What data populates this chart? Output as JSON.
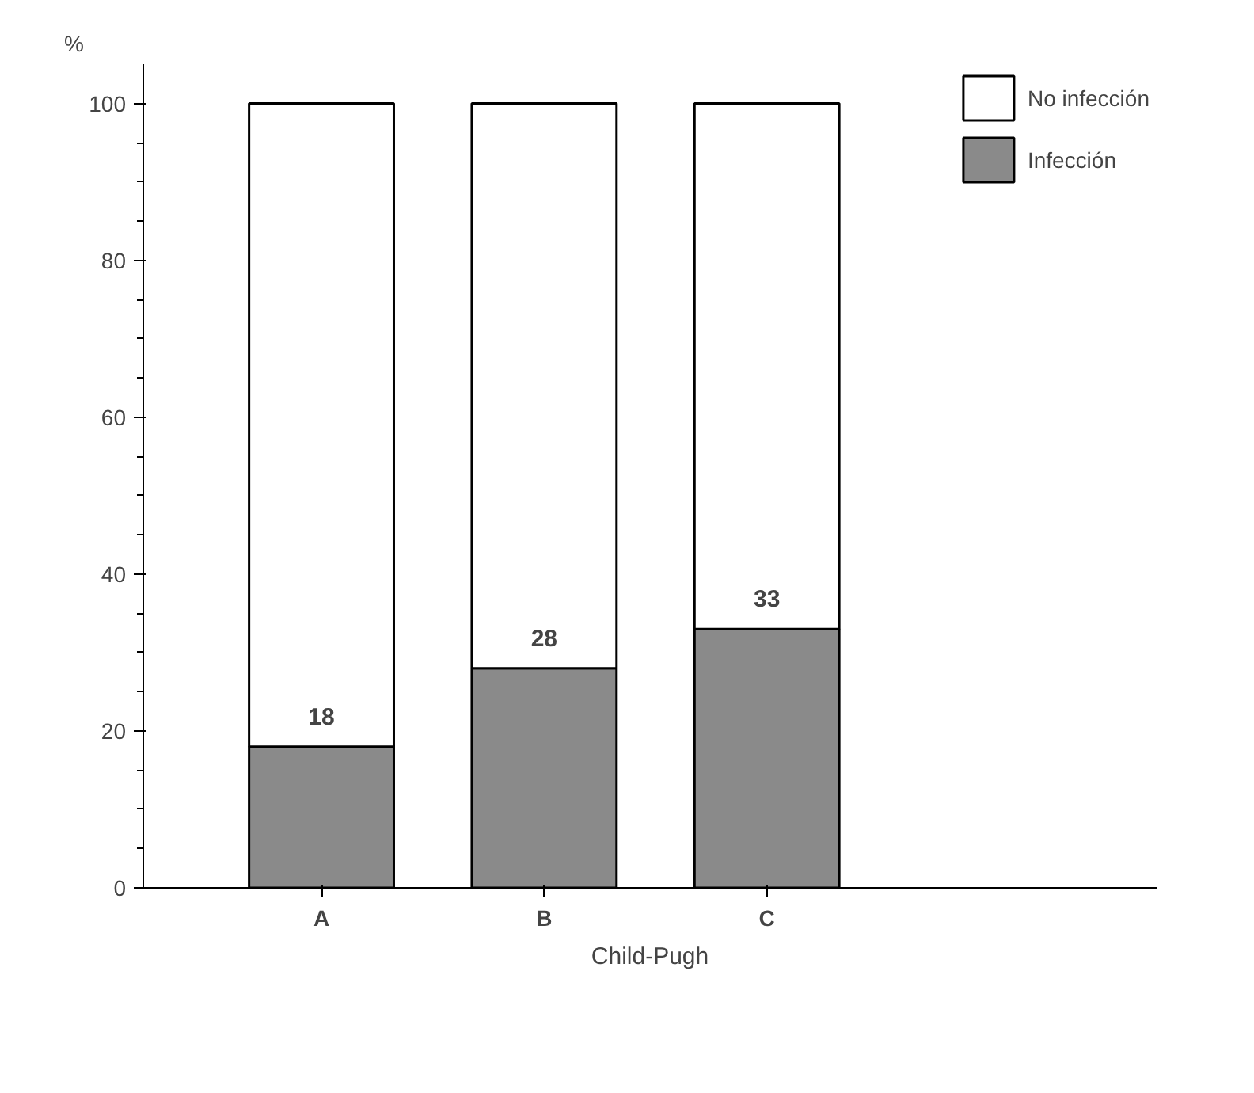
{
  "chart_data": {
    "type": "bar",
    "stacked": true,
    "ylabel": "%",
    "xlabel": "Child-Pugh",
    "categories": [
      "A",
      "B",
      "C"
    ],
    "series": [
      {
        "name": "Infección",
        "color": "#8a8a8a",
        "values": [
          18,
          28,
          33
        ],
        "value_labels": [
          "18",
          "28",
          "33"
        ]
      },
      {
        "name": "No infección",
        "color": "#ffffff",
        "values": [
          82,
          72,
          67
        ]
      }
    ],
    "ylim": [
      0,
      105
    ],
    "yticks": [
      0,
      20,
      40,
      60,
      80,
      100
    ],
    "grid": false,
    "legend": "top right"
  }
}
